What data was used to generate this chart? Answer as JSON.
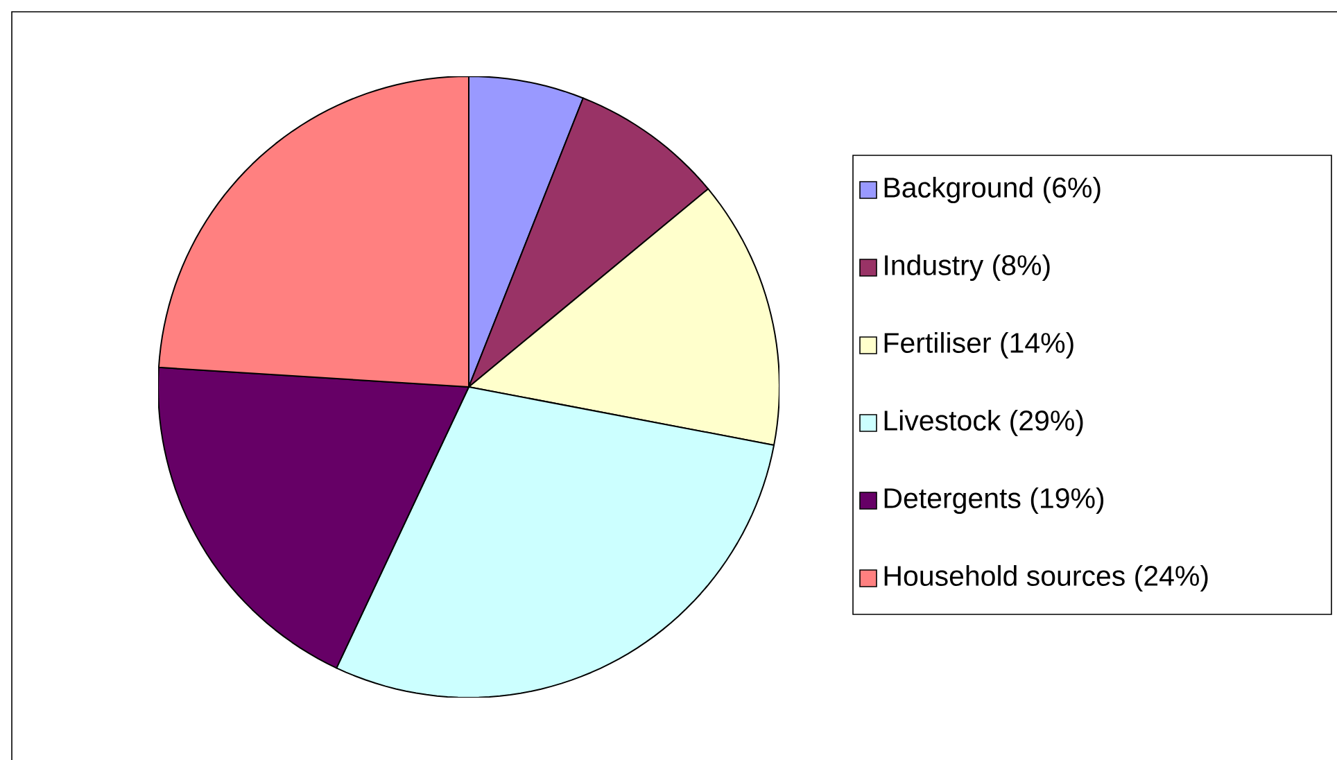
{
  "chart_data": {
    "type": "pie",
    "categories": [
      "Background (6%)",
      "Industry (8%)",
      "Fertiliser (14%)",
      "Livestock (29%)",
      "Detergents (19%)",
      "Household sources (24%)"
    ],
    "values": [
      6,
      8,
      14,
      29,
      19,
      24
    ],
    "colors": [
      "#9999ff",
      "#993366",
      "#ffffcc",
      "#ccffff",
      "#660066",
      "#ff8080"
    ],
    "legend": "right"
  }
}
